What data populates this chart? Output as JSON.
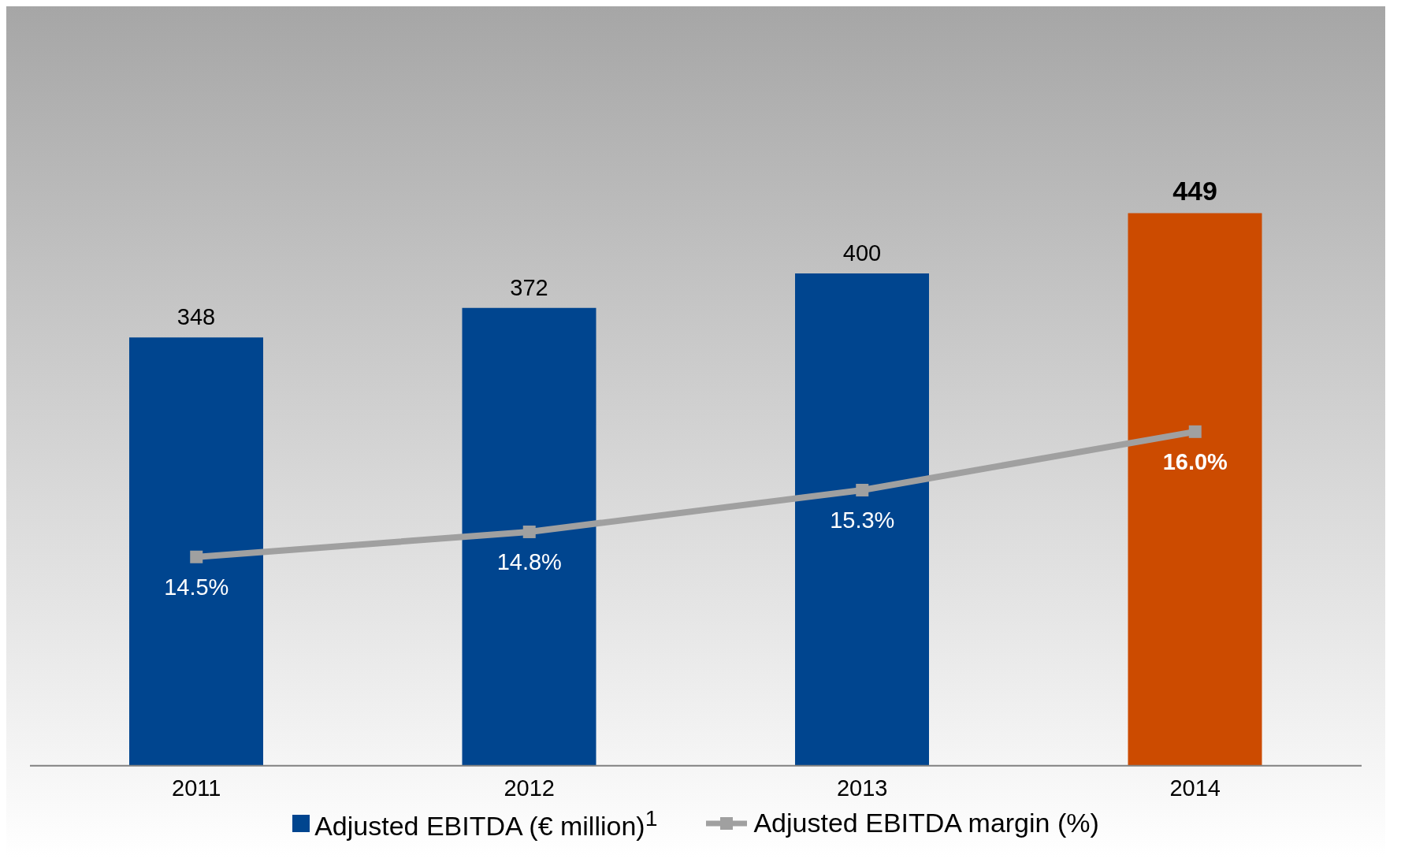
{
  "chart_data": {
    "type": "bar",
    "categories": [
      "2011",
      "2012",
      "2013",
      "2014"
    ],
    "series": [
      {
        "name": "Adjusted EBITDA (€ million)$^{1}$",
        "color": "#00458f",
        "colors": [
          "#00458f",
          "#00458f",
          "#00458f",
          "#cc4b00"
        ],
        "values": [
          348,
          372,
          400,
          449
        ]
      },
      {
        "name": "Adjusted EBITDA margin (%)",
        "type": "line",
        "axis": "y2",
        "color": "#a0a0a0",
        "values": [
          14.5,
          14.8,
          15.3,
          16.0
        ],
        "value_labels": [
          "14.5%",
          "14.8%",
          "15.3%",
          "16.0%"
        ]
      }
    ],
    "tick_labels": "x",
    "data_labels": true,
    "marker": "square",
    "line_style": "solid",
    "legend": "bottom"
  }
}
